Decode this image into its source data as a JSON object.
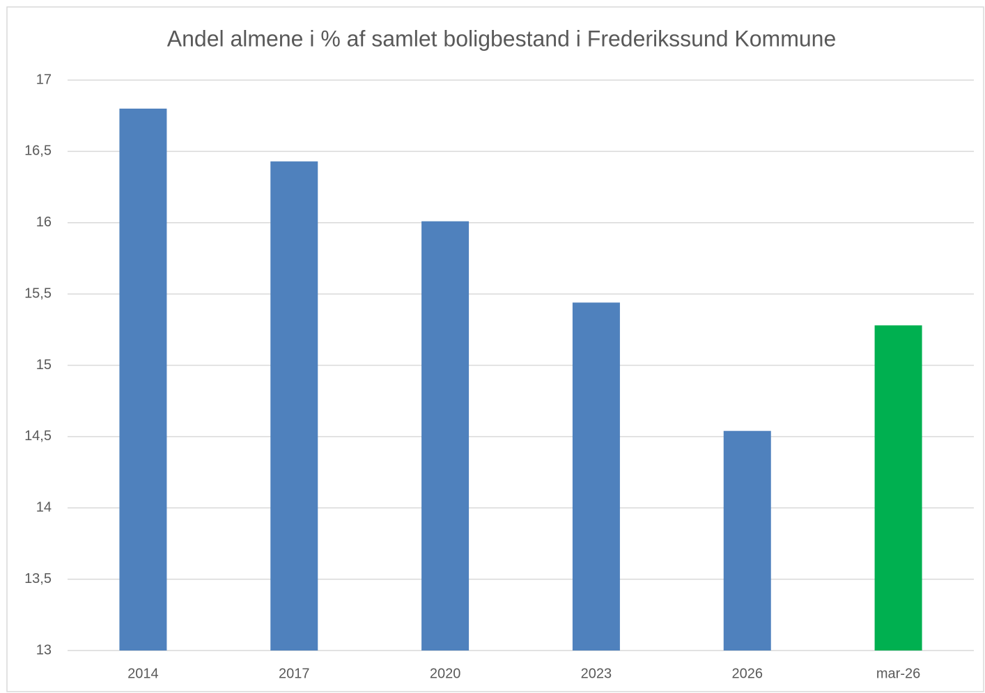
{
  "chart_data": {
    "type": "bar",
    "title": "Andel almene i % af samlet boligbestand i Frederikssund  Kommune",
    "categories": [
      "2014",
      "2017",
      "2020",
      "2023",
      "2026",
      "mar-26"
    ],
    "values": [
      16.8,
      16.43,
      16.01,
      15.44,
      14.54,
      15.28
    ],
    "colors": [
      "#4f81bd",
      "#4f81bd",
      "#4f81bd",
      "#4f81bd",
      "#4f81bd",
      "#00b050"
    ],
    "ylim": [
      13,
      17
    ],
    "yticks": [
      13,
      {
        "value": 13.5,
        "label": "13,5"
      },
      14,
      {
        "value": 14.5,
        "label": "14,5"
      },
      15,
      {
        "value": 15.5,
        "label": "15,5"
      },
      16,
      {
        "value": 16.5,
        "label": "16,5"
      },
      17
    ],
    "grid": true
  }
}
